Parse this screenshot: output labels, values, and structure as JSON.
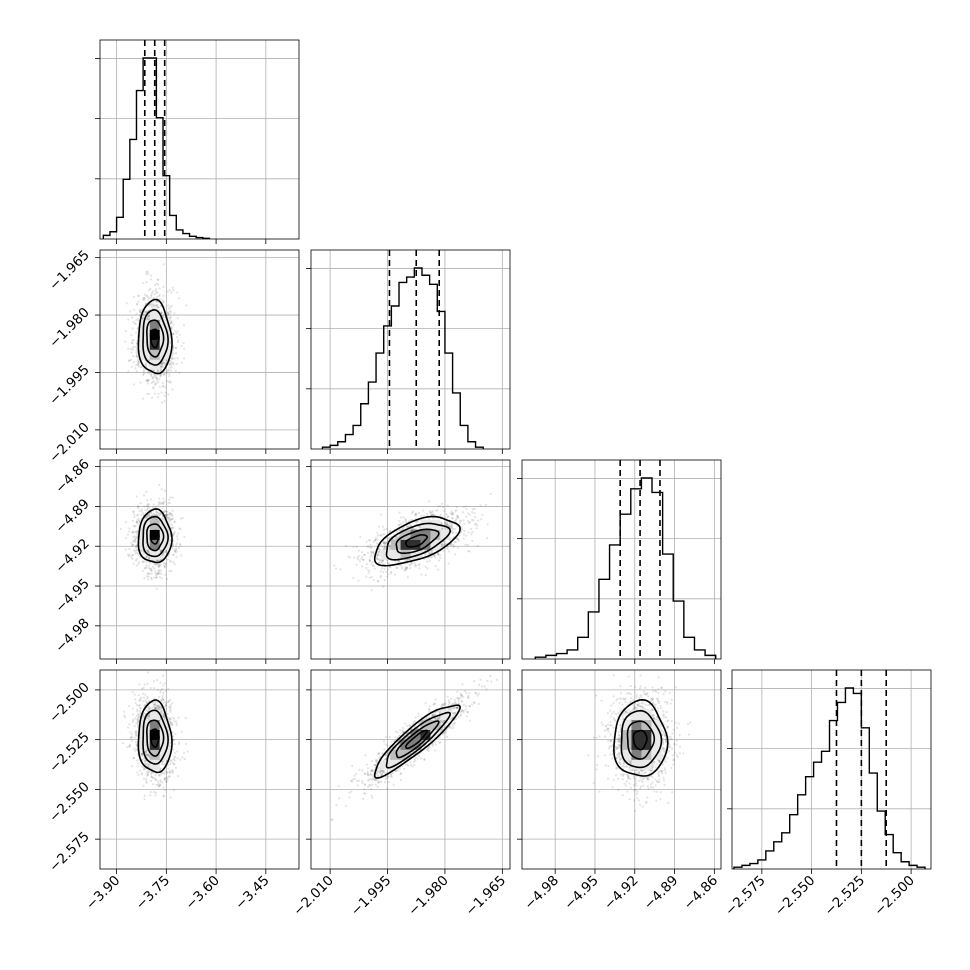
{
  "chart_data": {
    "type": "corner",
    "params": [
      {
        "range": [
          -3.95,
          -3.35
        ],
        "ticks": [
          -3.9,
          -3.75,
          -3.6,
          -3.45
        ],
        "tick_labels": [
          "−3.90",
          "−3.75",
          "−3.60",
          "−3.45"
        ],
        "quantiles": [
          -3.815,
          -3.785,
          -3.755
        ],
        "hist_max": 1.0,
        "hist": {
          "edges": [
            -3.94,
            -3.92,
            -3.9,
            -3.88,
            -3.86,
            -3.84,
            -3.82,
            -3.8,
            -3.78,
            -3.76,
            -3.74,
            -3.72,
            -3.7,
            -3.68,
            -3.66,
            -3.64,
            -3.62
          ],
          "counts": [
            0.02,
            0.04,
            0.12,
            0.33,
            0.55,
            0.82,
            1.0,
            1.0,
            0.67,
            0.35,
            0.13,
            0.05,
            0.03,
            0.015,
            0.008,
            0.004
          ]
        }
      },
      {
        "range": [
          -2.015,
          -1.963
        ],
        "ticks": [
          -2.01,
          -1.995,
          -1.98,
          -1.965
        ],
        "tick_labels": [
          "−2.010",
          "−1.995",
          "−1.980",
          "−1.965"
        ],
        "quantiles": [
          -1.9945,
          -1.9875,
          -1.9815
        ],
        "hist_max": 1.0,
        "hist": {
          "edges": [
            -2.012,
            -2.01,
            -2.008,
            -2.006,
            -2.004,
            -2.002,
            -2.0,
            -1.998,
            -1.996,
            -1.994,
            -1.992,
            -1.99,
            -1.988,
            -1.986,
            -1.984,
            -1.982,
            -1.98,
            -1.978,
            -1.976,
            -1.974,
            -1.972,
            -1.97
          ],
          "counts": [
            0.01,
            0.02,
            0.04,
            0.08,
            0.13,
            0.25,
            0.37,
            0.53,
            0.68,
            0.79,
            0.92,
            0.95,
            1.0,
            0.96,
            0.91,
            0.76,
            0.53,
            0.31,
            0.13,
            0.04,
            0.01
          ]
        }
      },
      {
        "range": [
          -5.005,
          -4.855
        ],
        "ticks": [
          -4.98,
          -4.95,
          -4.92,
          -4.89,
          -4.86
        ],
        "tick_labels": [
          "−4.98",
          "−4.95",
          "−4.92",
          "−4.89",
          "−4.86"
        ],
        "quantiles": [
          -4.931,
          -4.916,
          -4.901
        ],
        "hist_max": 1.0,
        "hist": {
          "edges": [
            -4.995,
            -4.987,
            -4.979,
            -4.971,
            -4.963,
            -4.955,
            -4.947,
            -4.939,
            -4.931,
            -4.923,
            -4.915,
            -4.907,
            -4.899,
            -4.891,
            -4.883,
            -4.875,
            -4.867,
            -4.859
          ],
          "counts": [
            0.01,
            0.02,
            0.03,
            0.05,
            0.12,
            0.26,
            0.44,
            0.63,
            0.8,
            0.94,
            1.0,
            0.92,
            0.58,
            0.32,
            0.12,
            0.05,
            0.02
          ]
        }
      },
      {
        "range": [
          -2.59,
          -2.49
        ],
        "ticks": [
          -2.575,
          -2.55,
          -2.525,
          -2.5
        ],
        "tick_labels": [
          "−2.575",
          "−2.550",
          "−2.525",
          "−2.500"
        ],
        "quantiles": [
          -2.5375,
          -2.525,
          -2.5125
        ],
        "hist_max": 1.0,
        "hist": {
          "edges": [
            -2.589,
            -2.585,
            -2.581,
            -2.577,
            -2.573,
            -2.569,
            -2.565,
            -2.561,
            -2.557,
            -2.553,
            -2.549,
            -2.545,
            -2.541,
            -2.537,
            -2.533,
            -2.529,
            -2.525,
            -2.521,
            -2.517,
            -2.513,
            -2.509,
            -2.505,
            -2.501,
            -2.497,
            -2.493
          ],
          "counts": [
            0.01,
            0.02,
            0.03,
            0.05,
            0.1,
            0.15,
            0.2,
            0.3,
            0.41,
            0.51,
            0.59,
            0.65,
            0.82,
            0.92,
            1.0,
            0.97,
            0.78,
            0.53,
            0.32,
            0.19,
            0.09,
            0.04,
            0.02,
            0.01
          ]
        }
      }
    ],
    "pairs": [
      {
        "row": 1,
        "col": 0,
        "center": [
          -3.785,
          -1.986
        ],
        "sigma": [
          0.025,
          0.0048
        ],
        "rho": -0.05
      },
      {
        "row": 2,
        "col": 0,
        "center": [
          -3.785,
          -4.913
        ],
        "sigma": [
          0.025,
          0.01
        ],
        "rho": 0.0
      },
      {
        "row": 2,
        "col": 1,
        "center": [
          -1.9875,
          -4.916
        ],
        "sigma": [
          0.0055,
          0.009
        ],
        "rho": 0.55
      },
      {
        "row": 3,
        "col": 0,
        "center": [
          -3.785,
          -2.524
        ],
        "sigma": [
          0.025,
          0.009
        ],
        "rho": -0.05
      },
      {
        "row": 3,
        "col": 1,
        "center": [
          -1.9875,
          -2.525
        ],
        "sigma": [
          0.0055,
          0.009
        ],
        "rho": 0.9
      },
      {
        "row": 3,
        "col": 2,
        "center": [
          -4.916,
          -2.525
        ],
        "sigma": [
          0.01,
          0.0095
        ],
        "rho": 0.0
      }
    ],
    "contour_levels_sigma": [
      0.5,
      1.0,
      1.5,
      2.0
    ],
    "grid": true
  }
}
